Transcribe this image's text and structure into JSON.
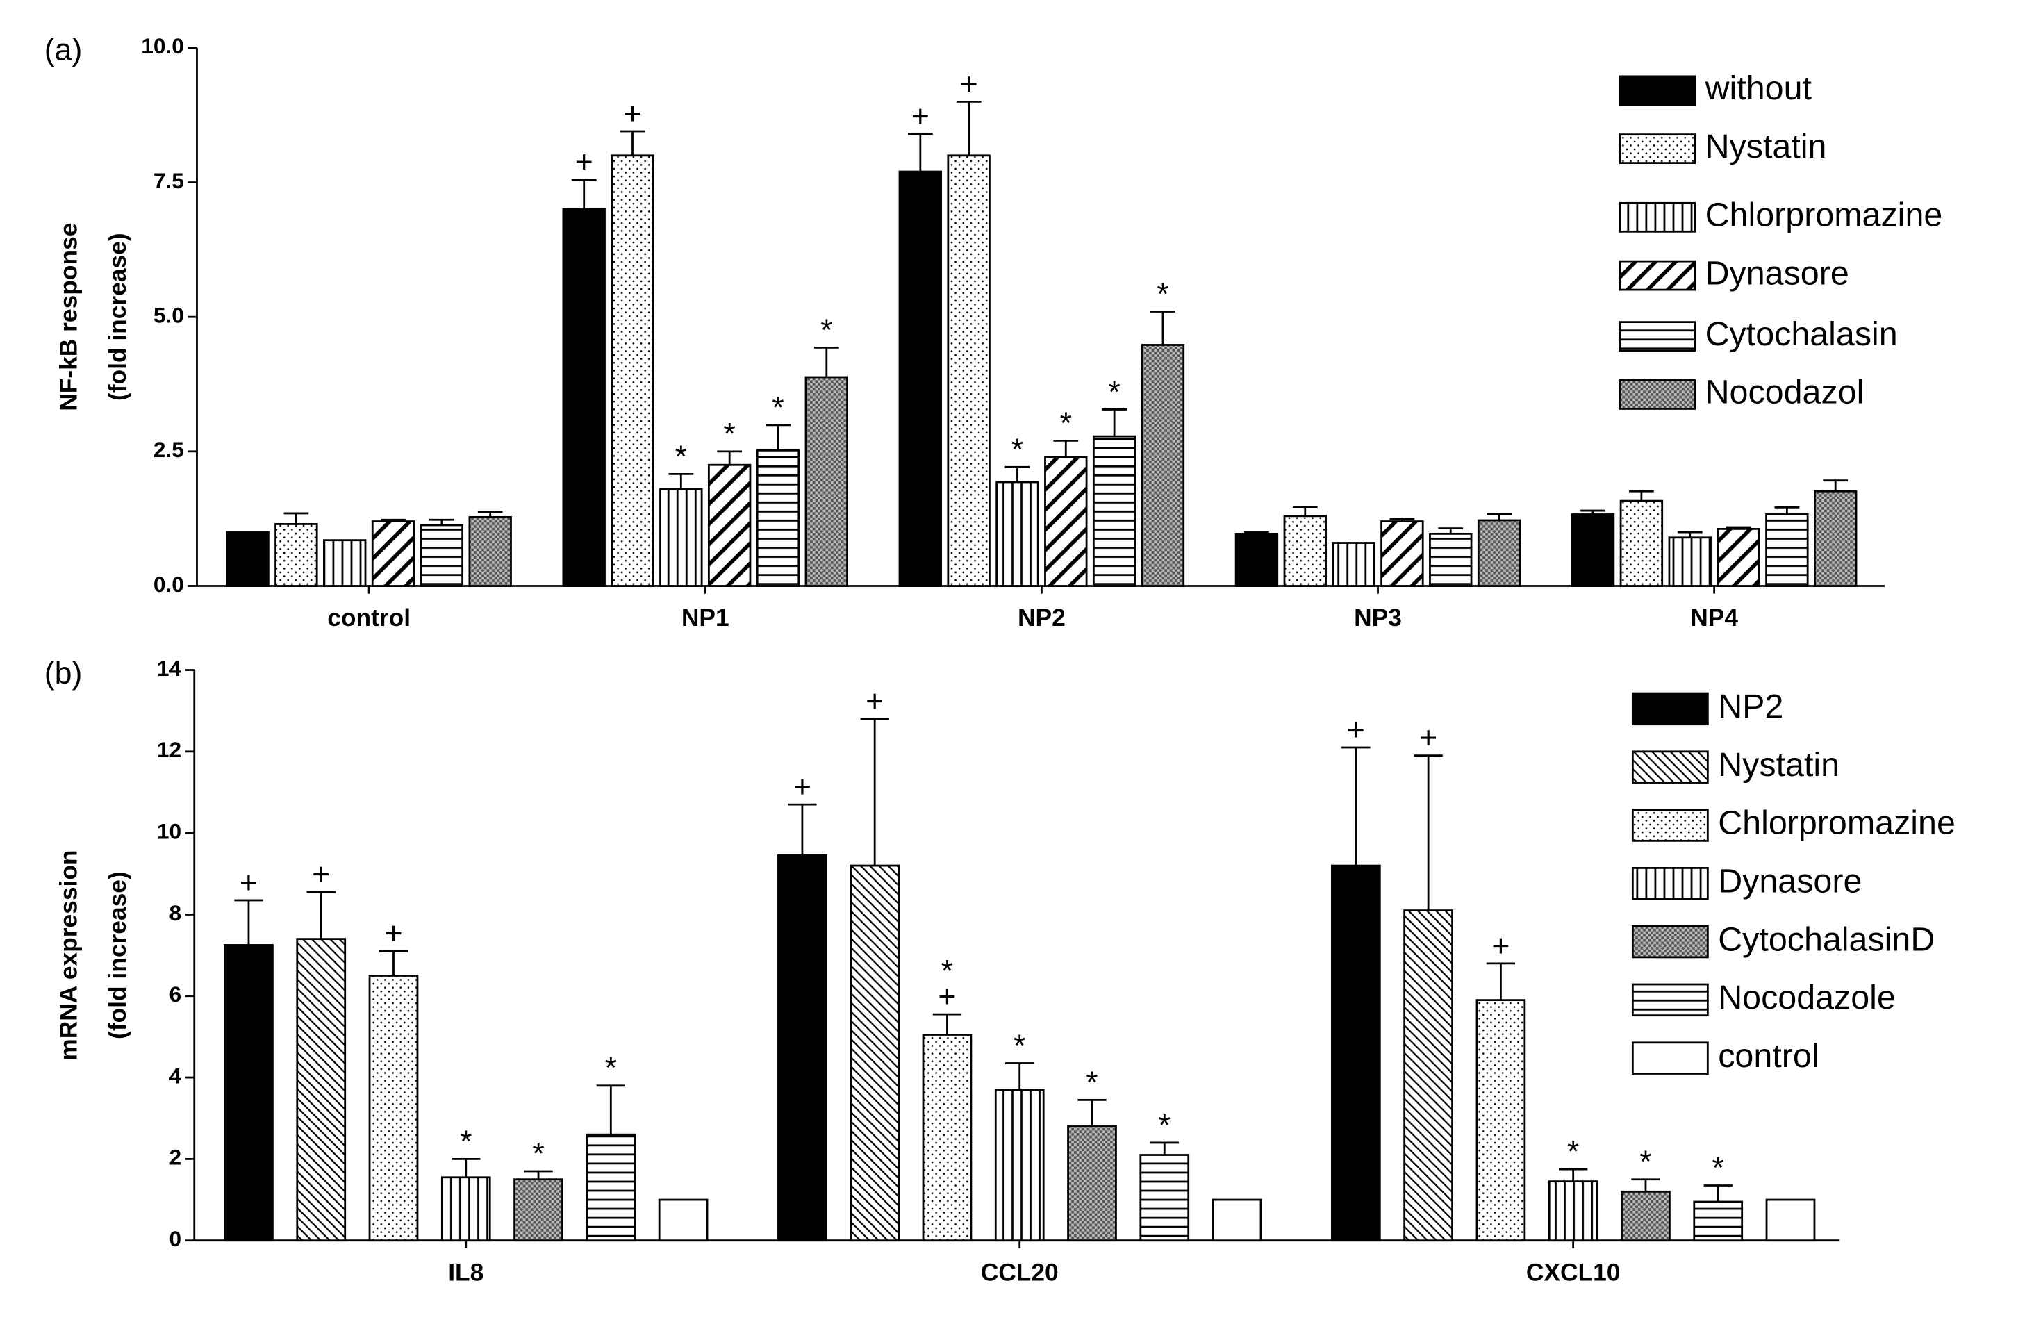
{
  "chart_data": [
    {
      "type": "bar",
      "panel_label": "(a)",
      "ylabel": [
        "NF-kB response",
        "(fold increase)"
      ],
      "categories": [
        "control",
        "NP1",
        "NP2",
        "NP3",
        "NP4"
      ],
      "ylim": [
        0,
        10
      ],
      "yticks": [
        {
          "value": 0,
          "label": "0.0"
        },
        2.5,
        {
          "value": 5,
          "label": "5.0"
        },
        7.5,
        {
          "value": 10,
          "label": "10.0"
        }
      ],
      "series": [
        {
          "name": "without",
          "color": "#000000",
          "pattern": "solid",
          "values": [
            1.0,
            7.0,
            7.7,
            0.97,
            1.33
          ],
          "errors": [
            0,
            0.55,
            0.7,
            0.03,
            0.07
          ],
          "annotations": [
            null,
            [
              "+"
            ],
            [
              "+"
            ],
            null,
            null
          ]
        },
        {
          "name": "Nystatin",
          "color": "#000000",
          "pattern": "dots",
          "values": [
            1.15,
            8.0,
            8.0,
            1.3,
            1.58
          ],
          "errors": [
            0.2,
            0.45,
            1.0,
            0.17,
            0.18
          ],
          "annotations": [
            null,
            [
              "+"
            ],
            [
              "+"
            ],
            null,
            null
          ]
        },
        {
          "name": "Chlorpromazine",
          "color": "#000000",
          "pattern": "vertical",
          "values": [
            0.85,
            1.8,
            1.93,
            0.8,
            0.9
          ],
          "errors": [
            0,
            0.28,
            0.28,
            0,
            0.1
          ],
          "annotations": [
            null,
            [
              "*"
            ],
            [
              "*"
            ],
            null,
            null
          ]
        },
        {
          "name": "Dynasore",
          "color": "#000000",
          "pattern": "diagonal-back",
          "values": [
            1.2,
            2.25,
            2.4,
            1.2,
            1.06
          ],
          "errors": [
            0.03,
            0.25,
            0.3,
            0.05,
            0.03
          ],
          "annotations": [
            null,
            [
              "*"
            ],
            [
              "*"
            ],
            null,
            null
          ]
        },
        {
          "name": "Cytochalasin",
          "color": "#000000",
          "pattern": "horizontal",
          "values": [
            1.13,
            2.52,
            2.78,
            0.97,
            1.33
          ],
          "errors": [
            0.1,
            0.47,
            0.5,
            0.1,
            0.13
          ],
          "annotations": [
            null,
            [
              "*"
            ],
            [
              "*"
            ],
            null,
            null
          ]
        },
        {
          "name": "Nocodazol",
          "color": "#000000",
          "pattern": "crosshatch",
          "values": [
            1.28,
            3.88,
            4.48,
            1.22,
            1.76
          ],
          "errors": [
            0.1,
            0.55,
            0.62,
            0.12,
            0.2
          ],
          "annotations": [
            null,
            [
              "*"
            ],
            [
              "*"
            ],
            null,
            null
          ]
        }
      ]
    },
    {
      "type": "bar",
      "panel_label": "(b)",
      "ylabel": [
        "mRNA expression",
        "(fold increase)"
      ],
      "categories": [
        "IL8",
        "CCL20",
        "CXCL10"
      ],
      "ylim": [
        0,
        14
      ],
      "yticks": [
        0,
        2,
        4,
        6,
        8,
        10,
        12,
        14
      ],
      "series": [
        {
          "name": "NP2",
          "color": "#000000",
          "pattern": "solid",
          "values": [
            7.25,
            9.45,
            9.2
          ],
          "errors": [
            1.1,
            1.25,
            2.9
          ],
          "annotations": [
            [
              "+"
            ],
            [
              "+"
            ],
            [
              "+"
            ]
          ]
        },
        {
          "name": "Nystatin",
          "color": "#000000",
          "pattern": "diagonal",
          "values": [
            7.4,
            9.2,
            8.1
          ],
          "errors": [
            1.15,
            3.6,
            3.8
          ],
          "annotations": [
            [
              "+"
            ],
            [
              "+"
            ],
            [
              "+"
            ]
          ]
        },
        {
          "name": "Chlorpromazine",
          "color": "#000000",
          "pattern": "dots",
          "values": [
            6.5,
            5.05,
            5.9
          ],
          "errors": [
            0.6,
            0.5,
            0.9
          ],
          "annotations": [
            [
              "+"
            ],
            [
              "*",
              "+"
            ],
            [
              "+"
            ]
          ]
        },
        {
          "name": "Dynasore",
          "color": "#000000",
          "pattern": "vertical",
          "values": [
            1.55,
            3.7,
            1.45
          ],
          "errors": [
            0.45,
            0.65,
            0.3
          ],
          "annotations": [
            [
              "*"
            ],
            [
              "*"
            ],
            [
              "*"
            ]
          ]
        },
        {
          "name": "CytochalasinD",
          "color": "#000000",
          "pattern": "crosshatch",
          "values": [
            1.5,
            2.8,
            1.2
          ],
          "errors": [
            0.2,
            0.65,
            0.3
          ],
          "annotations": [
            [
              "*"
            ],
            [
              "*"
            ],
            [
              "*"
            ]
          ]
        },
        {
          "name": "Nocodazole",
          "color": "#000000",
          "pattern": "horizontal",
          "values": [
            2.6,
            2.1,
            0.95
          ],
          "errors": [
            1.2,
            0.3,
            0.4
          ],
          "annotations": [
            [
              "*"
            ],
            [
              "*"
            ],
            [
              "*"
            ]
          ]
        },
        {
          "name": "control",
          "color": "#000000",
          "pattern": "blank",
          "values": [
            1,
            1,
            1
          ],
          "errors": [
            0,
            0,
            0
          ],
          "annotations": [
            null,
            null,
            null
          ]
        }
      ]
    }
  ]
}
